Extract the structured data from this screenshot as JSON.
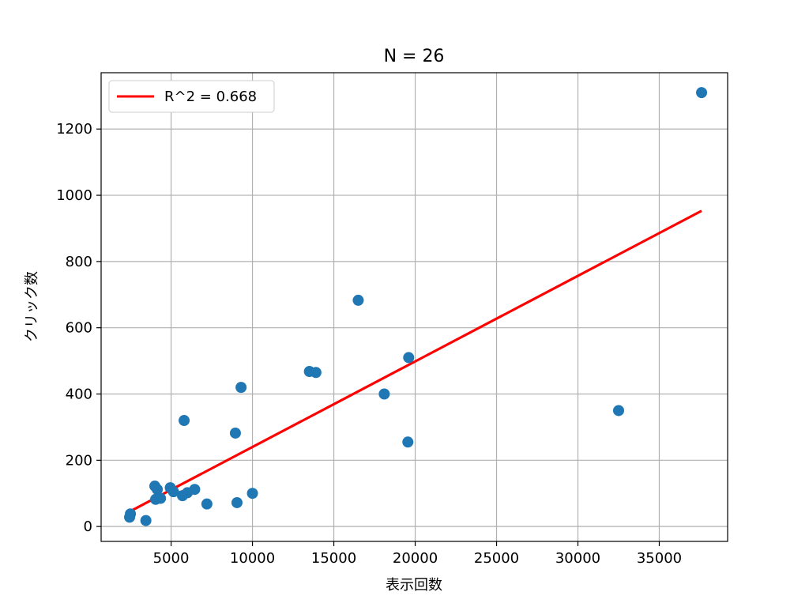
{
  "chart_data": {
    "type": "scatter",
    "title": "N = 26",
    "xlabel": "表示回数",
    "ylabel": "クリック数",
    "xlim": [
      700,
      39200
    ],
    "ylim": [
      -45,
      1370
    ],
    "xticks": [
      "5000",
      "10000",
      "15000",
      "20000",
      "25000",
      "30000",
      "35000"
    ],
    "xtick_values": [
      5000,
      10000,
      15000,
      20000,
      25000,
      30000,
      35000
    ],
    "yticks": [
      "0",
      "200",
      "400",
      "600",
      "800",
      "1000",
      "1200"
    ],
    "ytick_values": [
      0,
      200,
      400,
      600,
      800,
      1000,
      1200
    ],
    "grid": true,
    "legend_position": "upper-left",
    "legend": [
      "R^2 = 0.668"
    ],
    "scatter_color": "#1f77b4",
    "fit_color": "#ff0000",
    "points": [
      {
        "x": 37600,
        "y": 1310
      },
      {
        "x": 16500,
        "y": 683
      },
      {
        "x": 19600,
        "y": 510
      },
      {
        "x": 13500,
        "y": 468
      },
      {
        "x": 13900,
        "y": 465
      },
      {
        "x": 9300,
        "y": 420
      },
      {
        "x": 18100,
        "y": 400
      },
      {
        "x": 32500,
        "y": 350
      },
      {
        "x": 5800,
        "y": 320
      },
      {
        "x": 8950,
        "y": 282
      },
      {
        "x": 19550,
        "y": 255
      },
      {
        "x": 4000,
        "y": 122
      },
      {
        "x": 4150,
        "y": 112
      },
      {
        "x": 4950,
        "y": 117
      },
      {
        "x": 5150,
        "y": 105
      },
      {
        "x": 6450,
        "y": 112
      },
      {
        "x": 6000,
        "y": 102
      },
      {
        "x": 5700,
        "y": 93
      },
      {
        "x": 4050,
        "y": 82
      },
      {
        "x": 4350,
        "y": 85
      },
      {
        "x": 10000,
        "y": 100
      },
      {
        "x": 9050,
        "y": 72
      },
      {
        "x": 7200,
        "y": 68
      },
      {
        "x": 2500,
        "y": 38
      },
      {
        "x": 2450,
        "y": 28
      },
      {
        "x": 3450,
        "y": 18
      }
    ],
    "fit_line": {
      "x": [
        2450,
        37600
      ],
      "y": [
        45,
        953
      ]
    }
  }
}
